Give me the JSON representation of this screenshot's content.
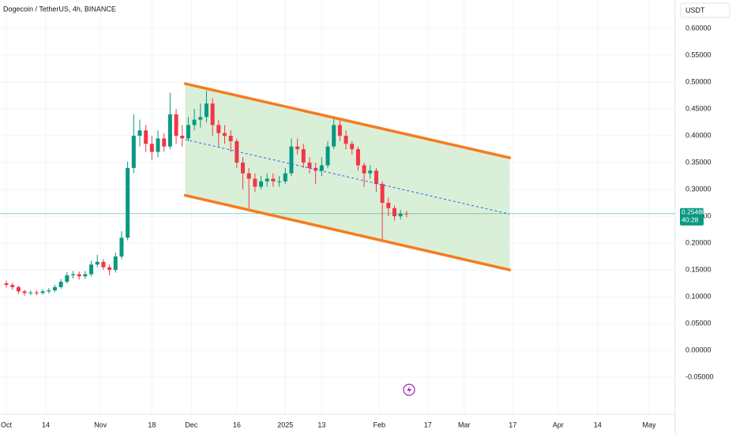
{
  "header": {
    "title": "Dogecoin / TetherUS, 4h, BINANCE",
    "currency": "USDT"
  },
  "chart_data": {
    "type": "candlestick",
    "x": [
      0,
      2,
      4,
      6,
      8,
      10,
      12,
      14,
      16,
      18,
      20,
      22,
      24,
      26,
      28,
      30,
      32,
      34,
      36,
      38,
      40,
      42,
      44,
      46,
      48,
      50,
      52,
      54,
      56,
      58,
      60,
      62,
      64,
      66,
      68,
      70,
      72,
      74,
      76,
      78,
      80,
      82,
      84,
      86,
      88,
      90,
      92,
      94,
      96,
      98,
      100,
      102,
      104,
      106,
      108,
      110,
      112,
      114,
      116,
      118,
      120,
      122,
      124,
      126,
      128,
      130,
      132
    ],
    "open": [
      0.125,
      0.122,
      0.118,
      0.11,
      0.107,
      0.108,
      0.107,
      0.11,
      0.112,
      0.118,
      0.128,
      0.14,
      0.142,
      0.138,
      0.142,
      0.16,
      0.165,
      0.155,
      0.15,
      0.175,
      0.21,
      0.34,
      0.4,
      0.41,
      0.385,
      0.37,
      0.395,
      0.38,
      0.44,
      0.4,
      0.395,
      0.42,
      0.43,
      0.435,
      0.46,
      0.42,
      0.405,
      0.4,
      0.39,
      0.35,
      0.33,
      0.32,
      0.305,
      0.315,
      0.32,
      0.315,
      0.315,
      0.33,
      0.38,
      0.375,
      0.35,
      0.34,
      0.335,
      0.345,
      0.38,
      0.42,
      0.4,
      0.385,
      0.375,
      0.345,
      0.33,
      0.335,
      0.31,
      0.275,
      0.265,
      0.25,
      0.255
    ],
    "high": [
      0.13,
      0.126,
      0.121,
      0.113,
      0.112,
      0.112,
      0.114,
      0.116,
      0.122,
      0.133,
      0.146,
      0.148,
      0.147,
      0.148,
      0.167,
      0.178,
      0.17,
      0.16,
      0.182,
      0.222,
      0.352,
      0.44,
      0.43,
      0.42,
      0.4,
      0.41,
      0.405,
      0.48,
      0.45,
      0.42,
      0.435,
      0.45,
      0.46,
      0.484,
      0.47,
      0.43,
      0.42,
      0.41,
      0.395,
      0.36,
      0.34,
      0.33,
      0.325,
      0.33,
      0.33,
      0.325,
      0.34,
      0.395,
      0.395,
      0.385,
      0.36,
      0.35,
      0.36,
      0.39,
      0.435,
      0.43,
      0.41,
      0.39,
      0.38,
      0.35,
      0.345,
      0.34,
      0.315,
      0.285,
      0.27,
      0.262,
      0.26
    ],
    "low": [
      0.117,
      0.113,
      0.105,
      0.102,
      0.103,
      0.103,
      0.104,
      0.106,
      0.109,
      0.115,
      0.125,
      0.134,
      0.132,
      0.133,
      0.138,
      0.155,
      0.15,
      0.14,
      0.145,
      0.17,
      0.205,
      0.33,
      0.38,
      0.37,
      0.355,
      0.36,
      0.37,
      0.375,
      0.385,
      0.38,
      0.39,
      0.41,
      0.415,
      0.425,
      0.4,
      0.38,
      0.385,
      0.37,
      0.34,
      0.3,
      0.265,
      0.295,
      0.3,
      0.305,
      0.305,
      0.305,
      0.31,
      0.325,
      0.365,
      0.34,
      0.33,
      0.31,
      0.325,
      0.34,
      0.375,
      0.39,
      0.375,
      0.365,
      0.335,
      0.305,
      0.32,
      0.295,
      0.205,
      0.25,
      0.242,
      0.244,
      0.248
    ],
    "close": [
      0.122,
      0.118,
      0.11,
      0.107,
      0.108,
      0.107,
      0.11,
      0.112,
      0.118,
      0.128,
      0.14,
      0.142,
      0.138,
      0.142,
      0.16,
      0.165,
      0.155,
      0.15,
      0.175,
      0.21,
      0.34,
      0.4,
      0.41,
      0.385,
      0.37,
      0.395,
      0.38,
      0.44,
      0.4,
      0.395,
      0.42,
      0.43,
      0.435,
      0.46,
      0.42,
      0.405,
      0.4,
      0.39,
      0.35,
      0.33,
      0.32,
      0.305,
      0.315,
      0.32,
      0.315,
      0.315,
      0.33,
      0.38,
      0.375,
      0.35,
      0.34,
      0.335,
      0.345,
      0.38,
      0.42,
      0.4,
      0.385,
      0.375,
      0.345,
      0.33,
      0.335,
      0.31,
      0.275,
      0.265,
      0.25,
      0.255,
      0.2548
    ],
    "up_color": "#089981",
    "down_color": "#f23645",
    "channel": {
      "x": [
        59,
        166
      ],
      "upper": [
        0.497,
        0.359
      ],
      "lower": [
        0.289,
        0.15
      ],
      "mid": [
        0.393,
        0.254
      ],
      "color": "#f57c1f",
      "fill": "#d3ecd0",
      "mid_color": "#2962ff"
    },
    "last_price": {
      "value": 0.2548,
      "label": "0.25480"
    },
    "countdown": "40:28",
    "xlim": [
      -2.1,
      220.6
    ],
    "ylim": [
      -0.119,
      0.653
    ],
    "xticks": [
      {
        "value": 0,
        "label": "Oct"
      },
      {
        "value": 13,
        "label": "14"
      },
      {
        "value": 31,
        "label": "Nov"
      },
      {
        "value": 48,
        "label": "18"
      },
      {
        "value": 61,
        "label": "Dec"
      },
      {
        "value": 76,
        "label": "16"
      },
      {
        "value": 92,
        "label": "2025"
      },
      {
        "value": 104,
        "label": "13"
      },
      {
        "value": 123,
        "label": "Feb"
      },
      {
        "value": 139,
        "label": "17"
      },
      {
        "value": 151,
        "label": "Mar"
      },
      {
        "value": 167,
        "label": "17"
      },
      {
        "value": 182,
        "label": "Apr"
      },
      {
        "value": 195,
        "label": "14"
      },
      {
        "value": 212,
        "label": "May"
      }
    ],
    "yticks": [
      {
        "value": -0.05,
        "label": "-0.05000"
      },
      {
        "value": 0,
        "label": "0.00000"
      },
      {
        "value": 0.05,
        "label": "0.05000"
      },
      {
        "value": 0.1,
        "label": "0.10000"
      },
      {
        "value": 0.15,
        "label": "0.15000"
      },
      {
        "value": 0.2,
        "label": "0.20000"
      },
      {
        "value": 0.25,
        "label": "0.25000"
      },
      {
        "value": 0.3,
        "label": "0.30000"
      },
      {
        "value": 0.35,
        "label": "0.35000"
      },
      {
        "value": 0.4,
        "label": "0.40000"
      },
      {
        "value": 0.45,
        "label": "0.45000"
      },
      {
        "value": 0.5,
        "label": "0.50000"
      },
      {
        "value": 0.55,
        "label": "0.55000"
      },
      {
        "value": 0.6,
        "label": "0.60000"
      }
    ],
    "grid": true
  }
}
